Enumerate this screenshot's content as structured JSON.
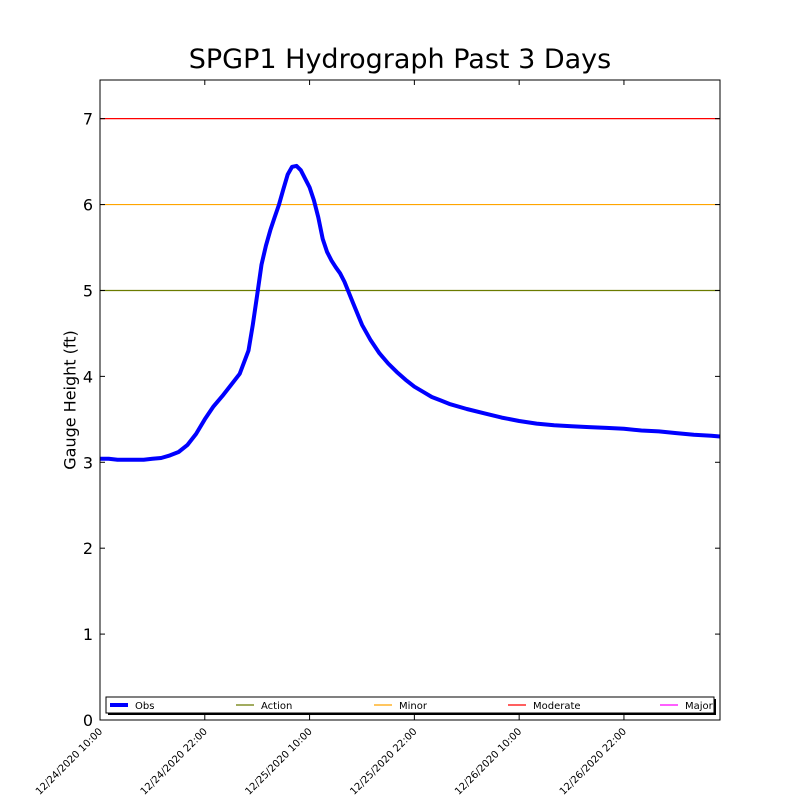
{
  "chart_data": {
    "type": "line",
    "title": "SPGP1 Hydrograph Past 3 Days",
    "xlabel": "",
    "ylabel": "Gauge Height (ft)",
    "ylim": [
      0,
      7.45
    ],
    "yticks": [
      0,
      1,
      2,
      3,
      4,
      5,
      6,
      7
    ],
    "x_range_hours": [
      0,
      71
    ],
    "x_ticks": [
      {
        "hours": 0,
        "label": "12/24/2020 10:00"
      },
      {
        "hours": 12,
        "label": "12/24/2020 22:00"
      },
      {
        "hours": 24,
        "label": "12/25/2020 10:00"
      },
      {
        "hours": 36,
        "label": "12/25/2020 22:00"
      },
      {
        "hours": 48,
        "label": "12/26/2020 10:00"
      },
      {
        "hours": 60,
        "label": "12/26/2020 22:00"
      }
    ],
    "grid": false,
    "legend_position": "bottom",
    "series": [
      {
        "name": "Obs",
        "color": "#0000ff",
        "x_hours": [
          0,
          1,
          2,
          3,
          4,
          5,
          6,
          7,
          8,
          9,
          10,
          11,
          12,
          13,
          14,
          15,
          16,
          17,
          17.5,
          18,
          18.5,
          19,
          19.5,
          20,
          20.5,
          21,
          21.5,
          22,
          22.5,
          23,
          23.5,
          24,
          24.5,
          25,
          25.5,
          26,
          26.5,
          27,
          27.5,
          28,
          29,
          30,
          31,
          32,
          33,
          34,
          35,
          36,
          37,
          38,
          39,
          40,
          42,
          44,
          46,
          48,
          50,
          52,
          54,
          56,
          58,
          60,
          62,
          64,
          66,
          68,
          70,
          71
        ],
        "values": [
          3.04,
          3.04,
          3.03,
          3.03,
          3.03,
          3.03,
          3.04,
          3.05,
          3.08,
          3.12,
          3.2,
          3.33,
          3.5,
          3.65,
          3.77,
          3.9,
          4.03,
          4.3,
          4.6,
          4.95,
          5.3,
          5.52,
          5.7,
          5.85,
          6.0,
          6.18,
          6.35,
          6.44,
          6.45,
          6.4,
          6.3,
          6.2,
          6.05,
          5.85,
          5.6,
          5.45,
          5.35,
          5.27,
          5.2,
          5.1,
          4.85,
          4.6,
          4.42,
          4.27,
          4.15,
          4.05,
          3.96,
          3.88,
          3.82,
          3.76,
          3.72,
          3.68,
          3.62,
          3.57,
          3.52,
          3.48,
          3.45,
          3.43,
          3.42,
          3.41,
          3.4,
          3.39,
          3.37,
          3.36,
          3.34,
          3.32,
          3.31,
          3.3
        ]
      }
    ],
    "thresholds": [
      {
        "name": "Action",
        "value": 5,
        "color": "#6b7b00"
      },
      {
        "name": "Minor",
        "value": 6,
        "color": "#ffa500"
      },
      {
        "name": "Moderate",
        "value": 7,
        "color": "#ff0000"
      },
      {
        "name": "Major",
        "value": null,
        "color": "#ff00ff"
      }
    ]
  }
}
